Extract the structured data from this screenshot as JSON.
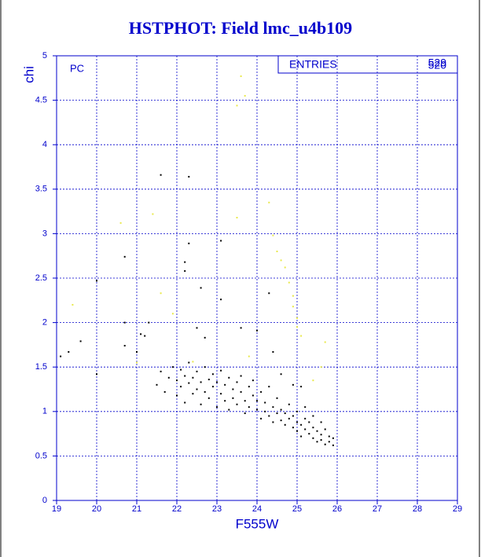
{
  "chart_data": {
    "type": "scatter",
    "title": "HSTPHOT: Field lmc_u4b109",
    "x_label": "F555W",
    "y_label": "chi",
    "annotation": "PC",
    "stats_box": {
      "label": "ENTRIES",
      "values": [
        "529",
        "520"
      ]
    },
    "xlim": [
      19,
      29
    ],
    "ylim": [
      0,
      5
    ],
    "xticks": [
      19,
      20,
      21,
      22,
      23,
      24,
      25,
      26,
      27,
      28,
      29
    ],
    "yticks": [
      0,
      0.5,
      1,
      1.5,
      2,
      2.5,
      3,
      3.5,
      4,
      4.5,
      5
    ],
    "grid": true,
    "grid_color": "#0000cc",
    "series": [
      {
        "color": "#000000",
        "x": [
          21.6,
          22.3,
          20.7,
          20.0,
          22.2,
          22.2,
          22.3,
          23.1,
          22.6,
          23.1,
          24.3,
          20.7,
          21.1,
          21.2,
          21.3,
          19.6,
          19.3,
          19.1,
          20.0,
          20.7,
          21.0,
          22.5,
          23.6,
          24.0,
          24.4,
          22.7,
          21.5,
          21.6,
          21.7,
          21.8,
          21.9,
          22.0,
          22.0,
          22.1,
          22.1,
          22.2,
          22.2,
          22.3,
          22.3,
          22.4,
          22.4,
          22.5,
          22.5,
          22.6,
          22.6,
          22.7,
          22.7,
          22.8,
          22.8,
          22.9,
          22.9,
          23.0,
          23.0,
          23.1,
          23.1,
          23.2,
          23.2,
          23.3,
          23.3,
          23.4,
          23.4,
          23.5,
          23.5,
          23.6,
          23.6,
          23.7,
          23.7,
          23.8,
          23.8,
          23.9,
          23.9,
          24.0,
          24.0,
          24.1,
          24.1,
          24.2,
          24.2,
          24.3,
          24.3,
          24.4,
          24.4,
          24.5,
          24.5,
          24.6,
          24.6,
          24.7,
          24.7,
          24.8,
          24.8,
          24.9,
          24.9,
          25.0,
          25.0,
          25.0,
          25.1,
          25.1,
          25.2,
          25.2,
          25.3,
          25.3,
          25.4,
          25.4,
          25.5,
          25.5,
          25.6,
          25.6,
          25.7,
          25.7,
          25.8,
          25.8,
          25.9,
          25.9,
          25.4,
          25.6,
          25.2,
          25.1,
          24.9,
          24.6
        ],
        "values": [
          3.66,
          3.64,
          2.74,
          2.47,
          2.68,
          2.58,
          2.89,
          2.92,
          2.39,
          2.26,
          2.33,
          2.0,
          1.87,
          1.85,
          2.0,
          1.79,
          1.67,
          1.62,
          1.42,
          1.74,
          1.67,
          1.94,
          1.94,
          1.91,
          1.67,
          1.83,
          1.3,
          1.45,
          1.22,
          1.38,
          1.5,
          1.18,
          1.35,
          1.28,
          1.47,
          1.1,
          1.4,
          1.32,
          1.55,
          1.2,
          1.38,
          1.25,
          1.45,
          1.08,
          1.33,
          1.5,
          1.22,
          1.36,
          1.15,
          1.42,
          1.28,
          1.05,
          1.33,
          1.2,
          1.46,
          1.12,
          1.3,
          1.38,
          1.02,
          1.25,
          1.15,
          1.33,
          1.08,
          1.22,
          1.4,
          1.12,
          0.98,
          1.28,
          1.05,
          1.18,
          1.35,
          1.02,
          1.12,
          0.92,
          1.22,
          1.0,
          1.1,
          0.95,
          1.28,
          1.05,
          0.88,
          0.98,
          1.15,
          0.9,
          1.02,
          0.85,
          0.98,
          0.92,
          1.08,
          0.82,
          0.95,
          0.88,
          0.78,
          1.0,
          0.85,
          0.72,
          0.92,
          0.8,
          0.75,
          0.88,
          0.7,
          0.82,
          0.78,
          0.66,
          0.74,
          0.68,
          0.8,
          0.63,
          0.72,
          0.66,
          0.62,
          0.7,
          0.95,
          0.88,
          1.05,
          1.28,
          1.3,
          1.42
        ]
      },
      {
        "color": "#e8e84a",
        "x": [
          23.6,
          23.7,
          23.5,
          21.4,
          20.6,
          23.5,
          24.3,
          24.4,
          24.5,
          24.7,
          24.6,
          24.8,
          24.9,
          24.9,
          25.0,
          25.0,
          25.1,
          19.4,
          21.6,
          21.9,
          22.4,
          25.7,
          25.6,
          23.8,
          21.0,
          25.4
        ],
        "values": [
          4.77,
          4.55,
          4.44,
          3.22,
          3.12,
          3.18,
          3.35,
          2.98,
          2.8,
          2.62,
          2.7,
          2.45,
          2.3,
          2.18,
          2.05,
          1.95,
          1.85,
          2.2,
          2.33,
          2.1,
          1.56,
          1.78,
          1.5,
          1.62,
          1.55,
          1.35
        ]
      }
    ]
  }
}
